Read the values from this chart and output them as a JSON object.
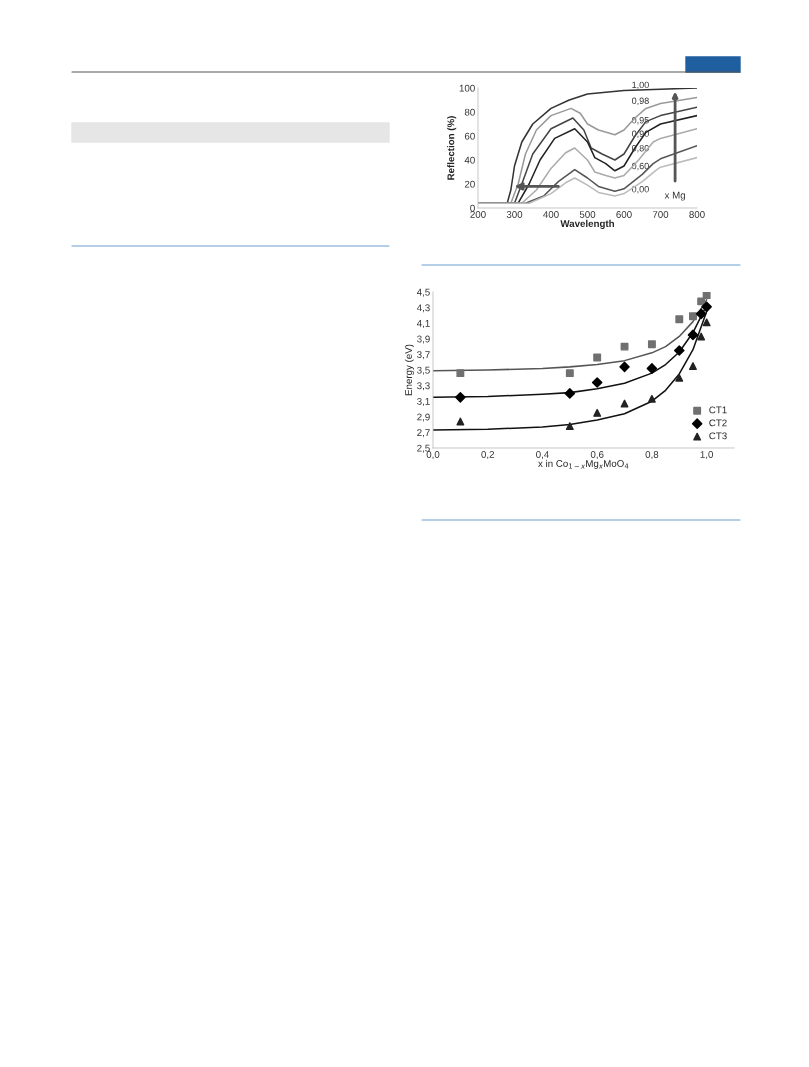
{
  "chart_data": [
    {
      "type": "line",
      "xlabel": "Wavelength",
      "ylabel": "Reflection (%)",
      "xlim": [
        200,
        800
      ],
      "xticks": [
        200,
        300,
        400,
        500,
        600,
        700,
        800
      ],
      "ylim": [
        0,
        100
      ],
      "yticks": [
        0,
        20,
        40,
        60,
        80,
        100
      ],
      "legend": false,
      "annotations": [
        "x Mg"
      ],
      "series": [
        {
          "name": "1,00",
          "color": "#333333",
          "x": [
            200,
            280,
            290,
            300,
            320,
            350,
            400,
            450,
            500,
            600,
            700,
            800
          ],
          "values": [
            4,
            4,
            15,
            35,
            55,
            70,
            83,
            90,
            95,
            98,
            99,
            100
          ]
        },
        {
          "name": "0,98",
          "color": "#999999",
          "x": [
            200,
            290,
            310,
            330,
            360,
            400,
            455,
            480,
            500,
            530,
            575,
            600,
            630,
            660,
            700,
            800
          ],
          "values": [
            4,
            4,
            20,
            45,
            65,
            77,
            83,
            79,
            70,
            65,
            61,
            65,
            75,
            83,
            87,
            92
          ]
        },
        {
          "name": "0,95",
          "color": "#444444",
          "x": [
            200,
            300,
            320,
            350,
            400,
            460,
            490,
            510,
            540,
            575,
            600,
            630,
            660,
            700,
            800
          ],
          "values": [
            4,
            4,
            20,
            45,
            66,
            75,
            65,
            50,
            45,
            40,
            45,
            60,
            72,
            77,
            84
          ]
        },
        {
          "name": "0,90",
          "color": "#222222",
          "x": [
            200,
            310,
            340,
            370,
            410,
            465,
            500,
            520,
            550,
            575,
            600,
            630,
            660,
            700,
            800
          ],
          "values": [
            4,
            4,
            20,
            40,
            58,
            66,
            55,
            42,
            37,
            31,
            35,
            50,
            63,
            70,
            77
          ]
        },
        {
          "name": "0,80",
          "color": "#aaaaaa",
          "x": [
            200,
            320,
            360,
            400,
            440,
            465,
            500,
            520,
            550,
            575,
            600,
            640,
            680,
            700,
            800
          ],
          "values": [
            4,
            4,
            15,
            33,
            46,
            50,
            40,
            30,
            27,
            25,
            27,
            40,
            55,
            58,
            66
          ]
        },
        {
          "name": "0,60",
          "color": "#555555",
          "x": [
            200,
            330,
            380,
            420,
            465,
            500,
            530,
            575,
            600,
            650,
            680,
            700,
            800
          ],
          "values": [
            4,
            4,
            10,
            22,
            32,
            25,
            18,
            14,
            16,
            28,
            37,
            41,
            52
          ]
        },
        {
          "name": "0,00",
          "color": "#bbbbbb",
          "x": [
            200,
            340,
            400,
            440,
            465,
            500,
            530,
            575,
            600,
            650,
            690,
            700,
            800
          ],
          "values": [
            4,
            4,
            12,
            21,
            25,
            19,
            13,
            10,
            12,
            22,
            32,
            34,
            42
          ]
        }
      ]
    },
    {
      "type": "scatter",
      "xlabel": "x in Co$_{1−x}$Mg$_{x}$MoO$_{4}$",
      "ylabel": "Energy (eV)",
      "xlim": [
        0,
        1.1
      ],
      "xticks": [
        {
          "value": 0,
          "label": "0,0"
        },
        {
          "value": 0.2,
          "label": "0,2"
        },
        {
          "value": 0.4,
          "label": "0,4"
        },
        {
          "value": 0.6,
          "label": "0,6"
        },
        {
          "value": 0.8,
          "label": "0,8"
        },
        {
          "value": 1.0,
          "label": "1,0"
        }
      ],
      "ylim": [
        2.5,
        4.5
      ],
      "yticks": [
        {
          "value": 2.5,
          "label": "2,5"
        },
        {
          "value": 2.7,
          "label": "2,7"
        },
        {
          "value": 2.9,
          "label": "2,9"
        },
        {
          "value": 3.1,
          "label": "3,1"
        },
        {
          "value": 3.3,
          "label": "3,3"
        },
        {
          "value": 3.5,
          "label": "3,5"
        },
        {
          "value": 3.7,
          "label": "3,7"
        },
        {
          "value": 3.9,
          "label": "3,9"
        },
        {
          "value": 4.1,
          "label": "4,1"
        },
        {
          "value": 4.3,
          "label": "4,3"
        },
        {
          "value": 4.5,
          "label": "4,5"
        }
      ],
      "legend": "bottom right",
      "series": [
        {
          "name": "CT1",
          "type": "scatter",
          "marker": "square",
          "color": "#707070",
          "x": [
            0.1,
            0.5,
            0.6,
            0.7,
            0.8,
            0.9,
            0.95,
            0.98,
            1.0
          ],
          "values": [
            3.46,
            3.46,
            3.66,
            3.8,
            3.83,
            4.15,
            4.19,
            4.38,
            4.46
          ]
        },
        {
          "name": "CT2",
          "type": "scatter",
          "marker": "diamond",
          "color": "#000000",
          "x": [
            0.1,
            0.5,
            0.6,
            0.7,
            0.8,
            0.9,
            0.95,
            0.98,
            1.0
          ],
          "values": [
            3.15,
            3.2,
            3.34,
            3.54,
            3.52,
            3.75,
            3.95,
            4.22,
            4.31
          ]
        },
        {
          "name": "CT3",
          "type": "scatter",
          "marker": "triangle",
          "color": "#222222",
          "x": [
            0.1,
            0.5,
            0.6,
            0.7,
            0.8,
            0.9,
            0.95,
            0.98,
            1.0
          ],
          "values": [
            2.84,
            2.78,
            2.95,
            3.07,
            3.13,
            3.4,
            3.55,
            3.93,
            4.11
          ]
        },
        {
          "type": "line",
          "marker": "none",
          "color": "#555555",
          "x": [
            0,
            0.2,
            0.4,
            0.5,
            0.6,
            0.7,
            0.8,
            0.85,
            0.9,
            0.95,
            1.0
          ],
          "values": [
            3.49,
            3.5,
            3.52,
            3.54,
            3.57,
            3.62,
            3.72,
            3.8,
            3.93,
            4.12,
            4.4
          ]
        },
        {
          "type": "line",
          "marker": "none",
          "color": "#111111",
          "x": [
            0,
            0.2,
            0.4,
            0.5,
            0.6,
            0.7,
            0.8,
            0.85,
            0.9,
            0.95,
            1.0
          ],
          "values": [
            3.15,
            3.16,
            3.19,
            3.21,
            3.26,
            3.33,
            3.46,
            3.57,
            3.73,
            3.98,
            4.33
          ]
        },
        {
          "type": "line",
          "marker": "none",
          "color": "#111111",
          "x": [
            0,
            0.2,
            0.4,
            0.5,
            0.6,
            0.7,
            0.8,
            0.85,
            0.9,
            0.95,
            1.0
          ],
          "values": [
            2.73,
            2.74,
            2.77,
            2.8,
            2.86,
            2.94,
            3.1,
            3.24,
            3.45,
            3.76,
            4.25
          ]
        }
      ]
    }
  ]
}
